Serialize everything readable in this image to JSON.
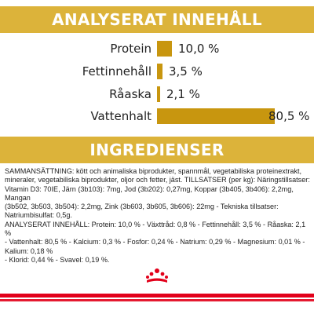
{
  "sections": {
    "analysis_title": "ANALYSERAT INNEHÅLL",
    "ingredients_title": "INGREDIENSER"
  },
  "nutrients": [
    {
      "label": "Protein",
      "value_text": "10,0 %",
      "value": 10.0
    },
    {
      "label": "Fettinnehåll",
      "value_text": "3,5 %",
      "value": 3.5
    },
    {
      "label": "Råaska",
      "value_text": "2,1 %",
      "value": 2.1
    },
    {
      "label": "Vattenhalt",
      "value_text": "80,5 %",
      "value": 80.5
    }
  ],
  "ingredients": {
    "lines": [
      "SAMMANSÄTTNING: kött och animaliska biprodukter, spannmål, vegetabiliska proteinextrakt,",
      "mineraler, vegetabiliska biprodukter, oljor och fetter, jäst. TILLSATSER (per kg): Näringstillsatser:",
      "Vitamin D3: 70IE, Järn (3b103): 7mg, Jod (3b202): 0,27mg, Koppar (3b405, 3b406): 2,2mg, Mangan",
      "(3b502, 3b503, 3b504): 2,2mg, Zink (3b603, 3b605, 3b606): 22mg - Tekniska tillsatser: Natriumbisulfat: 0,5g.",
      "ANALYSERAT INNEHÅLL: Protein: 10,0 % - Växttråd: 0,8 % - Fettinnehåll: 3,5 % - Råaska: 2,1 %",
      "- Vattenhalt: 80,5 % - Kalcium: 0,3 % - Fosfor: 0,24 % - Natrium: 0,29 % - Magnesium: 0,01 % - Kalium: 0,18 %",
      "- Klorid: 0,44 % - Svavel: 0,19 %."
    ]
  },
  "colors": {
    "banner": "#dcb33a",
    "bar": "#c8960f",
    "brand_red": "#e2001a"
  },
  "logo": {
    "icon": "royal-canin-crown-icon"
  }
}
